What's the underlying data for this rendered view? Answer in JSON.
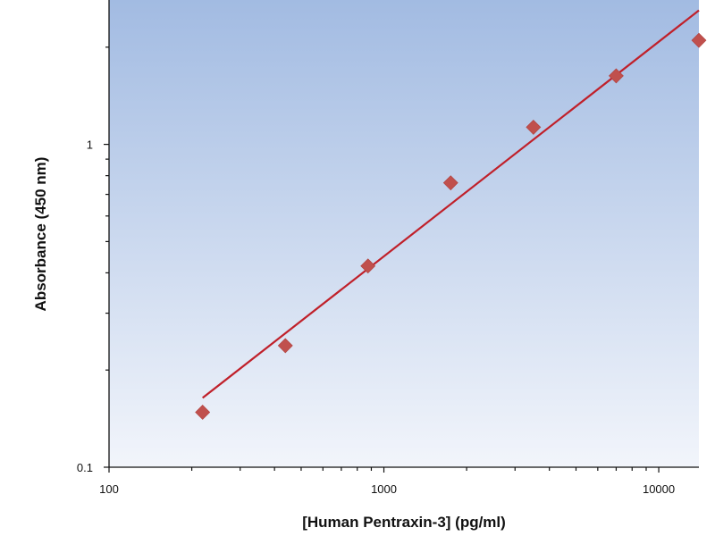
{
  "chart_data": {
    "type": "scatter",
    "title": "",
    "xlabel": "[Human Pentraxin-3] (pg/ml)",
    "ylabel": "Absorbance (450 nm)",
    "x_scale": "log",
    "y_scale": "log",
    "xlim": [
      100,
      14000
    ],
    "ylim": [
      0.1,
      2.8
    ],
    "x_ticks": [
      {
        "value": 100,
        "label": "100"
      },
      {
        "value": 1000,
        "label": "1000"
      },
      {
        "value": 10000,
        "label": "10000"
      }
    ],
    "y_ticks": [
      {
        "value": 0.1,
        "label": "0.1"
      },
      {
        "value": 1,
        "label": "1"
      }
    ],
    "grid": false,
    "legend": "none",
    "series": [
      {
        "type": "scatter",
        "marker": "diamond",
        "color": "#c0504d",
        "x": [
          219,
          438,
          875,
          1750,
          3500,
          7000,
          14000
        ],
        "y": [
          0.148,
          0.238,
          0.42,
          0.76,
          1.13,
          1.63,
          2.1
        ]
      },
      {
        "type": "line",
        "color": "#c0202a",
        "x": [
          219,
          14000
        ],
        "y": [
          0.164,
          2.6
        ]
      }
    ],
    "background_gradient": [
      "#a2bbe2",
      "#f2f5fb"
    ],
    "axis_color": "#111111"
  }
}
